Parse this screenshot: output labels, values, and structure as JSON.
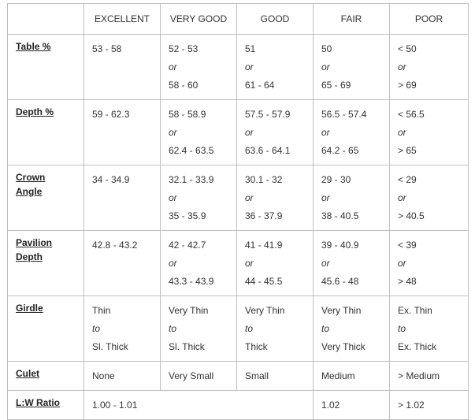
{
  "header": [
    "",
    "EXCELLENT",
    "VERY GOOD",
    "GOOD",
    "FAIR",
    "POOR"
  ],
  "rows": [
    {
      "label": [
        "Table %"
      ],
      "cells": [
        [
          "53 - 58"
        ],
        [
          "52 - 53",
          "or",
          "58 - 60"
        ],
        [
          "51",
          "or",
          "61 - 64"
        ],
        [
          "50",
          "or",
          "65 - 69"
        ],
        [
          "< 50",
          "or",
          "> 69"
        ]
      ]
    },
    {
      "label": [
        "Depth %"
      ],
      "cells": [
        [
          "59 - 62.3"
        ],
        [
          "58 - 58.9",
          "or",
          "62.4 - 63.5"
        ],
        [
          "57.5 - 57.9",
          "or",
          "63.6 - 64.1"
        ],
        [
          "56.5 - 57.4",
          "or",
          "64.2 - 65"
        ],
        [
          "< 56.5",
          "or",
          "> 65"
        ]
      ]
    },
    {
      "label": [
        "Crown",
        "Angle"
      ],
      "cells": [
        [
          "34 - 34.9"
        ],
        [
          "32.1 - 33.9",
          "or",
          "35 - 35.9"
        ],
        [
          "30.1 - 32",
          "or",
          "36 - 37.9"
        ],
        [
          "29 - 30",
          "or",
          "38 - 40.5"
        ],
        [
          "< 29",
          "or",
          "> 40.5"
        ]
      ]
    },
    {
      "label": [
        "Pavilion",
        "Depth"
      ],
      "cells": [
        [
          "42.8 - 43.2"
        ],
        [
          "42 - 42.7",
          "or",
          "43.3 - 43.9"
        ],
        [
          "41 - 41.9",
          "or",
          "44 - 45.5"
        ],
        [
          "39 - 40.9",
          "or",
          "45.6 - 48"
        ],
        [
          "< 39",
          "or",
          "> 48"
        ]
      ]
    },
    {
      "label": [
        "Girdle"
      ],
      "cells": [
        [
          "Thin",
          "to",
          "Sl. Thick"
        ],
        [
          "Very Thin",
          "to",
          "Sl. Thick"
        ],
        [
          "Very Thin",
          "to",
          "Thick"
        ],
        [
          "Very Thin",
          "to",
          "Very Thick"
        ],
        [
          "Ex. Thin",
          "to",
          "Ex. Thick"
        ]
      ]
    },
    {
      "label": [
        "Culet"
      ],
      "cells": [
        [
          "None"
        ],
        [
          "Very Small"
        ],
        [
          "Small"
        ],
        [
          "Medium"
        ],
        [
          "> Medium"
        ]
      ]
    }
  ],
  "lw_row": {
    "label": [
      "L:W Ratio"
    ],
    "excellent_to_good": [
      "1.00 - 1.01"
    ],
    "fair": [
      "1.02"
    ],
    "poor": [
      "> 1.02"
    ]
  }
}
